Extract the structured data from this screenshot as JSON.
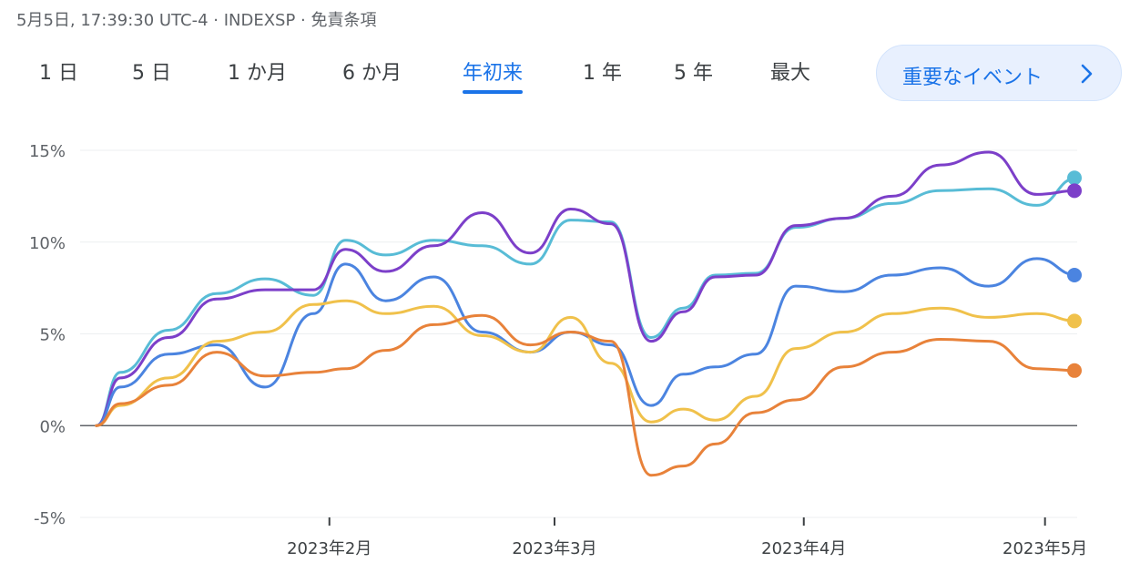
{
  "header": {
    "timestamp": "5月5日, 17:39:30 UTC-4 · INDEXSP · 免責条項"
  },
  "tabs": [
    {
      "label": "1 日",
      "active": false
    },
    {
      "label": "5 日",
      "active": false
    },
    {
      "label": "1 か月",
      "active": false
    },
    {
      "label": "6 か月",
      "active": false
    },
    {
      "label": "年初来",
      "active": true
    },
    {
      "label": "1 年",
      "active": false
    },
    {
      "label": "5 年",
      "active": false
    },
    {
      "label": "最大",
      "active": false
    }
  ],
  "events_button": {
    "label": "重要なイベント",
    "icon": "chevron-right-icon"
  },
  "colors": {
    "accent": "#1a73e8",
    "grid": "#eceff1",
    "zero_line": "#5f6368"
  },
  "chart_data": {
    "type": "line",
    "ylim": [
      -5,
      15
    ],
    "y_ticks": [
      "15%",
      "10%",
      "5%",
      "0%",
      "-5%"
    ],
    "y_tick_values": [
      15,
      10,
      5,
      0,
      -5
    ],
    "xlim": [
      "2023-01-01",
      "2023-05-05"
    ],
    "x_ticks": [
      {
        "date": "2023-02-01",
        "label": "2023年2月"
      },
      {
        "date": "2023-03-01",
        "label": "2023年3月"
      },
      {
        "date": "2023-04-01",
        "label": "2023年4月"
      },
      {
        "date": "2023-05-01",
        "label": "2023年5月"
      }
    ],
    "x": [
      "2023-01-03",
      "2023-01-06",
      "2023-01-12",
      "2023-01-18",
      "2023-01-24",
      "2023-01-30",
      "2023-02-03",
      "2023-02-08",
      "2023-02-14",
      "2023-02-20",
      "2023-02-26",
      "2023-03-03",
      "2023-03-08",
      "2023-03-13",
      "2023-03-17",
      "2023-03-21",
      "2023-03-26",
      "2023-03-31",
      "2023-04-06",
      "2023-04-12",
      "2023-04-18",
      "2023-04-24",
      "2023-04-30",
      "2023-05-05"
    ],
    "series": [
      {
        "color": "#58bcd6",
        "values": [
          0,
          2.9,
          5.2,
          7.2,
          8.0,
          7.1,
          10.1,
          9.3,
          10.1,
          9.8,
          8.8,
          11.2,
          11.1,
          4.8,
          6.4,
          8.2,
          8.3,
          10.8,
          11.3,
          12.1,
          12.8,
          12.9,
          12.0,
          13.5
        ]
      },
      {
        "color": "#7c3fc9",
        "values": [
          0,
          2.6,
          4.8,
          6.9,
          7.4,
          7.4,
          9.6,
          8.4,
          9.8,
          11.6,
          9.4,
          11.8,
          11.0,
          4.6,
          6.2,
          8.1,
          8.2,
          10.9,
          11.3,
          12.5,
          14.2,
          14.9,
          12.6,
          12.8
        ]
      },
      {
        "color": "#4b84e0",
        "values": [
          0,
          2.1,
          3.9,
          4.4,
          2.1,
          6.1,
          8.8,
          6.8,
          8.1,
          5.1,
          4.0,
          5.1,
          4.4,
          1.1,
          2.8,
          3.2,
          3.9,
          7.6,
          7.3,
          8.2,
          8.6,
          7.6,
          9.1,
          8.2
        ]
      },
      {
        "color": "#f0c14b",
        "values": [
          0,
          1.1,
          2.6,
          4.6,
          5.1,
          6.6,
          6.8,
          6.1,
          6.5,
          4.9,
          4.0,
          5.9,
          3.4,
          0.2,
          0.9,
          0.3,
          1.6,
          4.2,
          5.1,
          6.1,
          6.4,
          5.9,
          6.1,
          5.7
        ]
      },
      {
        "color": "#e8823a",
        "values": [
          0,
          1.2,
          2.2,
          4.0,
          2.7,
          2.9,
          3.1,
          4.1,
          5.5,
          6.0,
          4.4,
          5.1,
          4.6,
          -2.7,
          -2.2,
          -1.0,
          0.7,
          1.4,
          3.2,
          4.0,
          4.7,
          4.6,
          3.1,
          3.0
        ]
      }
    ]
  }
}
